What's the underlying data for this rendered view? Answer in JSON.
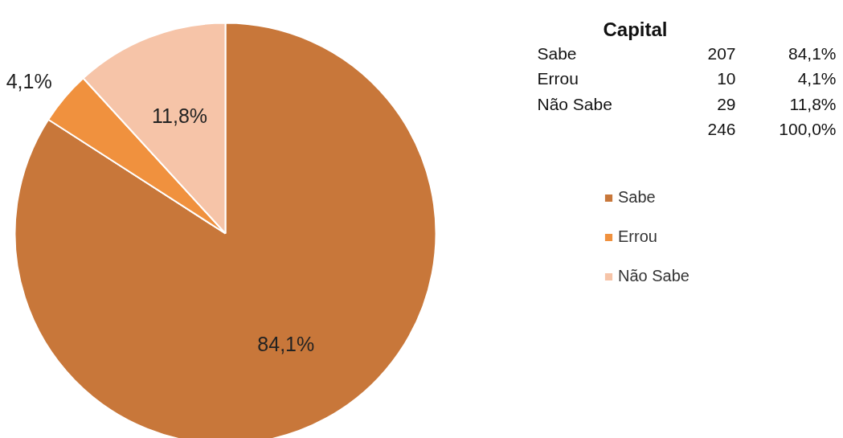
{
  "chart_data": {
    "type": "pie",
    "title": "Capital",
    "categories": [
      "Sabe",
      "Errou",
      "Não Sabe"
    ],
    "values": [
      84.1,
      4.1,
      11.8
    ],
    "annotations": [
      "207",
      "10",
      "29"
    ],
    "value_labels": [
      "84,1%",
      "4,1%",
      "11,8%"
    ],
    "totals": [
      "246",
      "100,0%"
    ],
    "colors": [
      "#c8773a",
      "#f0913e",
      "#f6c4a8"
    ],
    "legend": "right"
  }
}
